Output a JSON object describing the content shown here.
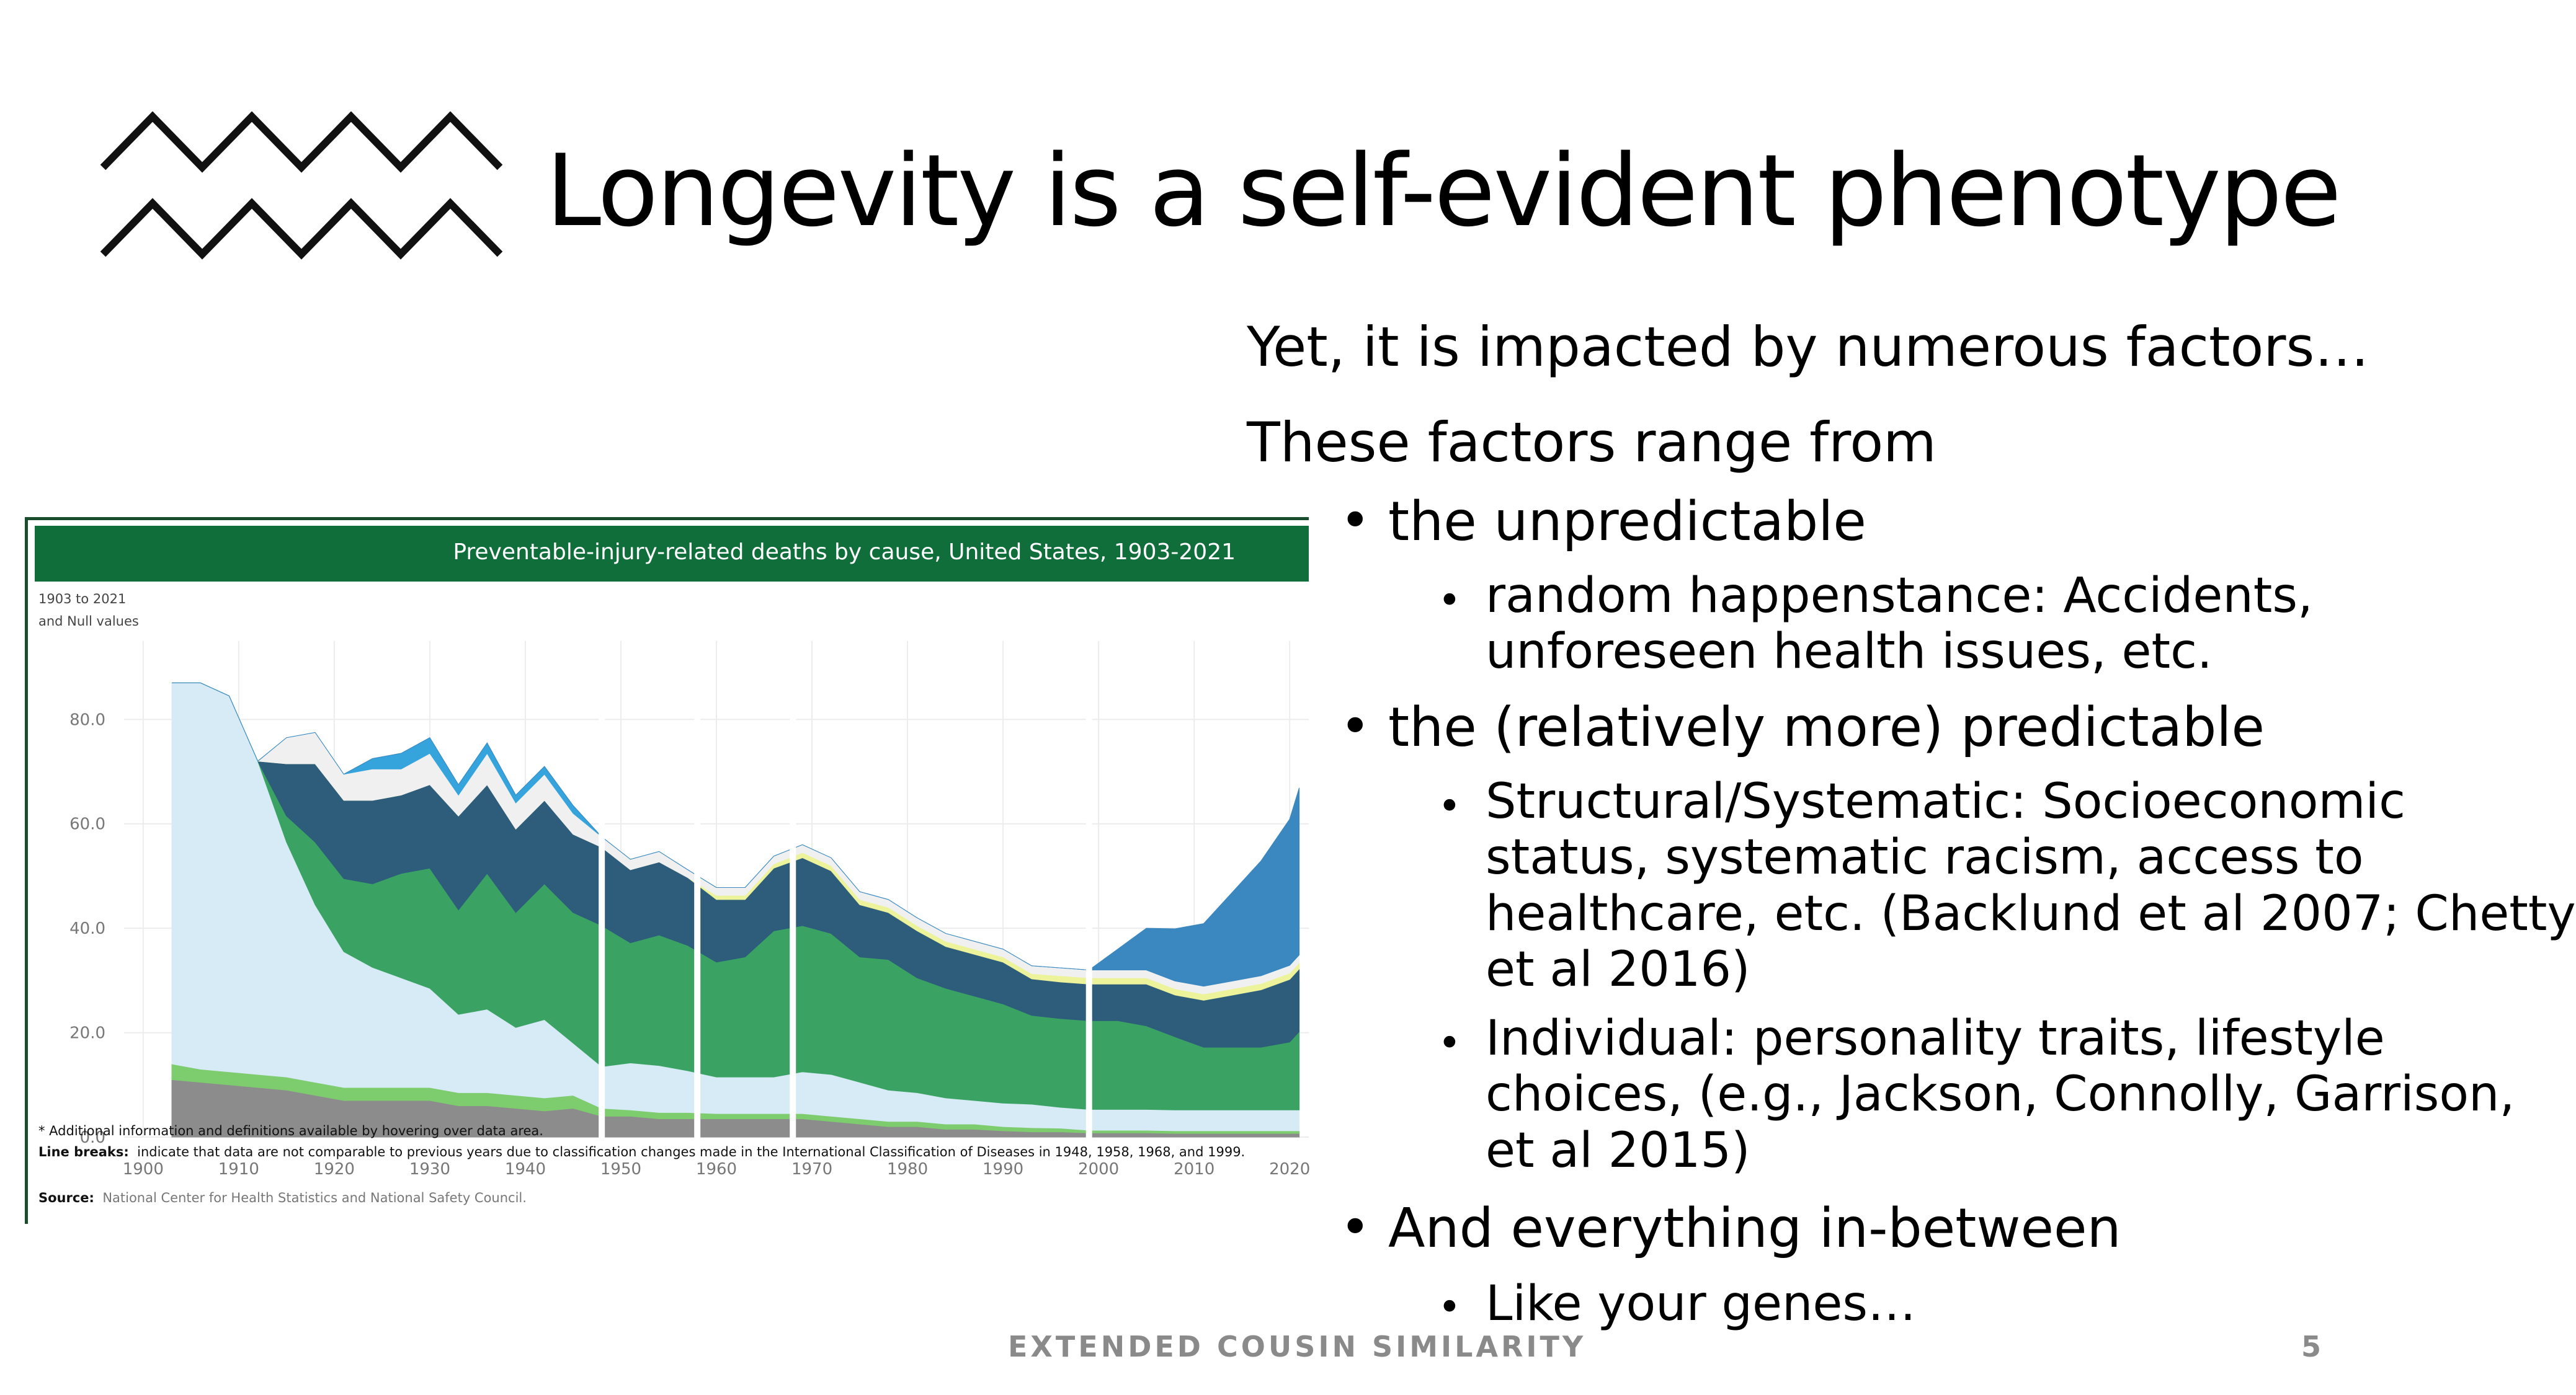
{
  "slide": {
    "title": "Longevity is a self-evident phenotype",
    "lines": [
      "Yet, it is impacted by numerous factors…",
      "These factors range from"
    ],
    "bullets": [
      {
        "text": "the unpredictable",
        "sub": [
          [
            "random happenstance: Accidents,",
            "unforeseen health issues, etc."
          ]
        ]
      },
      {
        "text": "the (relatively more) predictable",
        "sub": [
          [
            "Structural/Systematic: Socioeconomic",
            "status, systematic racism, access to",
            "healthcare, etc. (Backlund et al 2007; Chetty",
            "et al 2016)"
          ],
          [
            "Individual: personality traits, lifestyle",
            "choices, (e.g., Jackson, Connolly, Garrison,",
            "et al 2015)"
          ]
        ]
      },
      {
        "text": "And everything in-between",
        "sub": [
          [
            "Like your genes…"
          ]
        ]
      }
    ],
    "bullet_char": "•",
    "footer": "EXTENDED COUSIN SIMILARITY",
    "page_number": "5",
    "icon": "zigzag-lines-icon"
  },
  "chart": {
    "header": "Preventable-injury-related deaths by cause, United States, 1903-2021",
    "filter_line1": "1903 to 2021",
    "filter_line2": "and Null values",
    "note1": "* Additional information and definitions available by hovering over data area.",
    "note2_label": "Line breaks:",
    "note2_text": "indicate that data are not comparable to previous years due to classification changes made in the International Classification of Diseases in 1948, 1958, 1968, and 1999.",
    "source_label": "Source:",
    "source_text": "National Center for Health Statistics and National Safety Council."
  },
  "chart_data": {
    "type": "area",
    "title": "Preventable-injury-related deaths by cause, United States, 1903-2021",
    "xlabel": "",
    "ylabel": "",
    "xlim": [
      1898,
      2022
    ],
    "ylim": [
      0,
      95
    ],
    "x_ticks": [
      1900,
      1910,
      1920,
      1930,
      1940,
      1950,
      1960,
      1970,
      1980,
      1990,
      2000,
      2010,
      2020
    ],
    "y_ticks": [
      0,
      20,
      40,
      60,
      80
    ],
    "y_tick_labels": [
      "0.0",
      "20.0",
      "40.0",
      "60.0",
      "80.0"
    ],
    "grid": true,
    "line_breaks": [
      1948,
      1958,
      1968,
      1999
    ],
    "years": [
      1903,
      1906,
      1909,
      1912,
      1915,
      1918,
      1921,
      1924,
      1927,
      1930,
      1933,
      1936,
      1939,
      1942,
      1945,
      1948,
      1951,
      1954,
      1957,
      1960,
      1963,
      1966,
      1969,
      1972,
      1975,
      1978,
      1981,
      1984,
      1987,
      1990,
      1993,
      1996,
      1999,
      2002,
      2005,
      2008,
      2011,
      2014,
      2017,
      2020,
      2021
    ],
    "series": [
      {
        "color": "#8c8c8c",
        "values": [
          11,
          10.5,
          10,
          9.5,
          9,
          8,
          7,
          7,
          7,
          7,
          6,
          6,
          5.5,
          5,
          5.5,
          4,
          4,
          3.5,
          3.5,
          3.5,
          3.5,
          3.5,
          3.5,
          3,
          2.5,
          2,
          2,
          1.5,
          1.5,
          1.2,
          1,
          1,
          0.8,
          0.8,
          0.8,
          0.7,
          0.7,
          0.7,
          0.7,
          0.7,
          0.7
        ]
      },
      {
        "color": "#7dcc6e",
        "values": [
          3,
          2.5,
          2.5,
          2.5,
          2.5,
          2.5,
          2.5,
          2.5,
          2.5,
          2.5,
          2.5,
          2.5,
          2.5,
          2.5,
          2.5,
          1.5,
          1.2,
          1.2,
          1.2,
          1,
          1,
          1,
          1,
          1,
          1,
          1,
          1,
          1,
          1,
          0.8,
          0.8,
          0.7,
          0.5,
          0.5,
          0.5,
          0.5,
          0.5,
          0.5,
          0.5,
          0.5,
          0.5
        ]
      },
      {
        "color": "#d6ebf5",
        "values": [
          73,
          74,
          72,
          60,
          45,
          34,
          26,
          23,
          21,
          19,
          15,
          16,
          13,
          15,
          10,
          8,
          9,
          9,
          8,
          7,
          7,
          7,
          8,
          8,
          7,
          6,
          5.5,
          5,
          4.5,
          4.5,
          4.5,
          4,
          4,
          4,
          4,
          4,
          4,
          4,
          4,
          4,
          4
        ]
      },
      {
        "color": "#3aa364",
        "values": [
          0,
          0,
          0,
          0,
          5,
          12,
          14,
          16,
          20,
          23,
          20,
          26,
          22,
          26,
          25,
          27,
          23,
          25,
          24,
          22,
          23,
          28,
          28,
          27,
          24,
          25,
          22,
          21,
          20,
          19,
          17,
          17,
          17,
          17,
          16,
          14,
          12,
          12,
          12,
          13,
          15
        ]
      },
      {
        "color": "#2d5d7b",
        "values": [
          0,
          0,
          0,
          0,
          10,
          15,
          15,
          16,
          15,
          16,
          18,
          17,
          16,
          16,
          15,
          15,
          14,
          14,
          13,
          12,
          11,
          12,
          13,
          12,
          10,
          9,
          9,
          8,
          8,
          8,
          7,
          7,
          7,
          7,
          8,
          8,
          9,
          10,
          11,
          12,
          12
        ]
      },
      {
        "color": "#ecf39a",
        "values": [
          0,
          0,
          0,
          0,
          0,
          0,
          0,
          0,
          0,
          0,
          0,
          0,
          0,
          0,
          0,
          0,
          0,
          0,
          0,
          0.8,
          0.8,
          0.8,
          1,
          1,
          1,
          1,
          1,
          1,
          1,
          1,
          1,
          1.2,
          1.2,
          1.2,
          1.2,
          1.2,
          1.2,
          1.2,
          1.2,
          1.2,
          1.2
        ]
      },
      {
        "color": "#f0f0f0",
        "values": [
          0,
          0,
          0,
          0,
          5,
          6,
          5,
          6,
          5,
          6,
          4,
          6,
          5,
          5,
          4,
          2,
          2,
          2,
          1.5,
          1.5,
          1.5,
          1.5,
          1.5,
          1.5,
          1.5,
          1.5,
          1.5,
          1.5,
          1.5,
          1.5,
          1.5,
          1.5,
          1.5,
          1.5,
          1.5,
          1.5,
          1.5,
          1.5,
          1.5,
          1.5,
          1.5
        ]
      },
      {
        "color": "#35a4dc",
        "values": [
          0,
          0,
          0,
          0,
          0,
          0,
          0,
          2,
          3,
          3,
          2,
          2,
          1.5,
          1.5,
          1.5,
          0,
          0,
          0,
          0,
          0,
          0,
          0,
          0,
          0,
          0,
          0,
          0,
          0,
          0,
          0,
          0,
          0,
          0,
          0,
          0,
          0,
          0,
          0,
          0,
          0,
          0
        ]
      },
      {
        "color": "#3b87bf",
        "values": [
          0,
          0,
          0,
          0,
          0,
          0,
          0,
          0,
          0,
          0,
          0,
          0,
          0,
          0,
          0,
          0,
          0,
          0,
          0,
          0,
          0,
          0,
          0,
          0,
          0,
          0,
          0,
          0,
          0,
          0,
          0,
          0,
          0,
          4,
          8,
          10,
          12,
          17,
          22,
          28,
          32
        ]
      }
    ]
  }
}
